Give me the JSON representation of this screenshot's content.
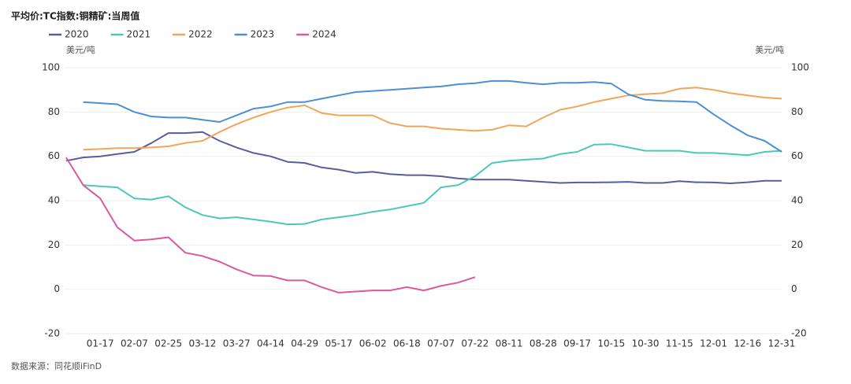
{
  "chart_data": {
    "type": "line",
    "title": "平均价:TC指数:铜精矿:当周值",
    "y_label": "美元/吨",
    "y2_label": "美元/吨",
    "source": "数据来源：同花顺iFinD",
    "categories": [
      null,
      null,
      "01-17",
      null,
      "02-07",
      null,
      "02-25",
      null,
      "03-12",
      null,
      "03-27",
      null,
      "04-14",
      null,
      "04-29",
      null,
      "05-17",
      null,
      "06-02",
      null,
      "06-18",
      null,
      "07-07",
      null,
      "07-22",
      null,
      "08-11",
      null,
      "08-28",
      null,
      "09-17",
      null,
      "10-15",
      null,
      "10-30",
      null,
      "11-15",
      null,
      "12-01",
      null,
      "12-16",
      null,
      "12-31"
    ],
    "series": [
      {
        "name": "2020",
        "color": "#5b5c9c",
        "values": [
          58,
          59.5,
          60,
          61,
          62,
          66,
          70.5,
          70.5,
          71,
          67,
          64,
          61.5,
          60,
          57.5,
          57,
          55,
          54,
          52.5,
          53,
          52,
          51.5,
          51.5,
          51,
          50,
          49.5,
          49.5,
          49.5,
          49,
          48.5,
          48,
          48.2,
          48.2,
          48.3,
          48.5,
          48,
          48,
          48.8,
          48.3,
          48.2,
          47.8,
          48.3,
          49,
          49
        ]
      },
      {
        "name": "2021",
        "color": "#4cc9b4",
        "values": [
          null,
          47,
          46.5,
          46,
          41,
          40.5,
          42,
          37,
          33.5,
          32,
          32.5,
          31.5,
          30.5,
          29.3,
          29.5,
          31.5,
          32.5,
          33.5,
          35,
          36,
          37.5,
          39,
          46,
          47,
          51,
          57,
          58,
          58.5,
          59,
          61,
          62,
          65.3,
          65.5,
          64,
          62.5,
          62.5,
          62.5,
          61.5,
          61.5,
          61,
          60.5,
          62,
          62.5
        ]
      },
      {
        "name": "2022",
        "color": "#f2a45b",
        "values": [
          null,
          63,
          63.3,
          63.7,
          63.7,
          64,
          64.5,
          66,
          67,
          71,
          74.5,
          77.5,
          80,
          82,
          83,
          79.5,
          78.5,
          78.5,
          78.5,
          75,
          73.5,
          73.5,
          72.5,
          72,
          71.5,
          72,
          74,
          73.5,
          77.5,
          81,
          82.5,
          84.5,
          86,
          87.5,
          88,
          88.5,
          90.5,
          91,
          90,
          88.5,
          87.5,
          86.5,
          86
        ]
      },
      {
        "name": "2023",
        "color": "#4c8fd3",
        "values": [
          null,
          84.5,
          84,
          83.5,
          80,
          78,
          77.5,
          77.5,
          76.5,
          75.5,
          78.5,
          81.5,
          82.5,
          84.5,
          84.5,
          86,
          87.5,
          89,
          89.5,
          90,
          90.5,
          91,
          91.5,
          92.5,
          93,
          94,
          94,
          93.2,
          92.5,
          93.2,
          93.2,
          93.5,
          92.8,
          88,
          85.5,
          85,
          84.8,
          84.5,
          79,
          74,
          69.5,
          67,
          62
        ]
      },
      {
        "name": "2024",
        "color": "#d95b9b",
        "values": [
          59.5,
          47,
          41,
          28,
          22,
          22.5,
          23.5,
          16.5,
          15,
          12.5,
          9,
          6.2,
          6,
          4,
          4,
          1,
          -1.5,
          -1,
          -0.5,
          -0.5,
          1,
          -0.5,
          1.5,
          3,
          5.5,
          null,
          null,
          null,
          null,
          null,
          null,
          null,
          null,
          null,
          null,
          null,
          null,
          null,
          null,
          null,
          null,
          null,
          null
        ]
      }
    ],
    "ylim": [
      -20,
      100
    ],
    "yticks": [
      -20,
      0,
      20,
      40,
      60,
      80,
      100
    ],
    "y2lim": [
      -20,
      100
    ],
    "y2ticks": [
      -20,
      0,
      20,
      40,
      60,
      80,
      100
    ],
    "grid": true,
    "legend": "top-left"
  }
}
